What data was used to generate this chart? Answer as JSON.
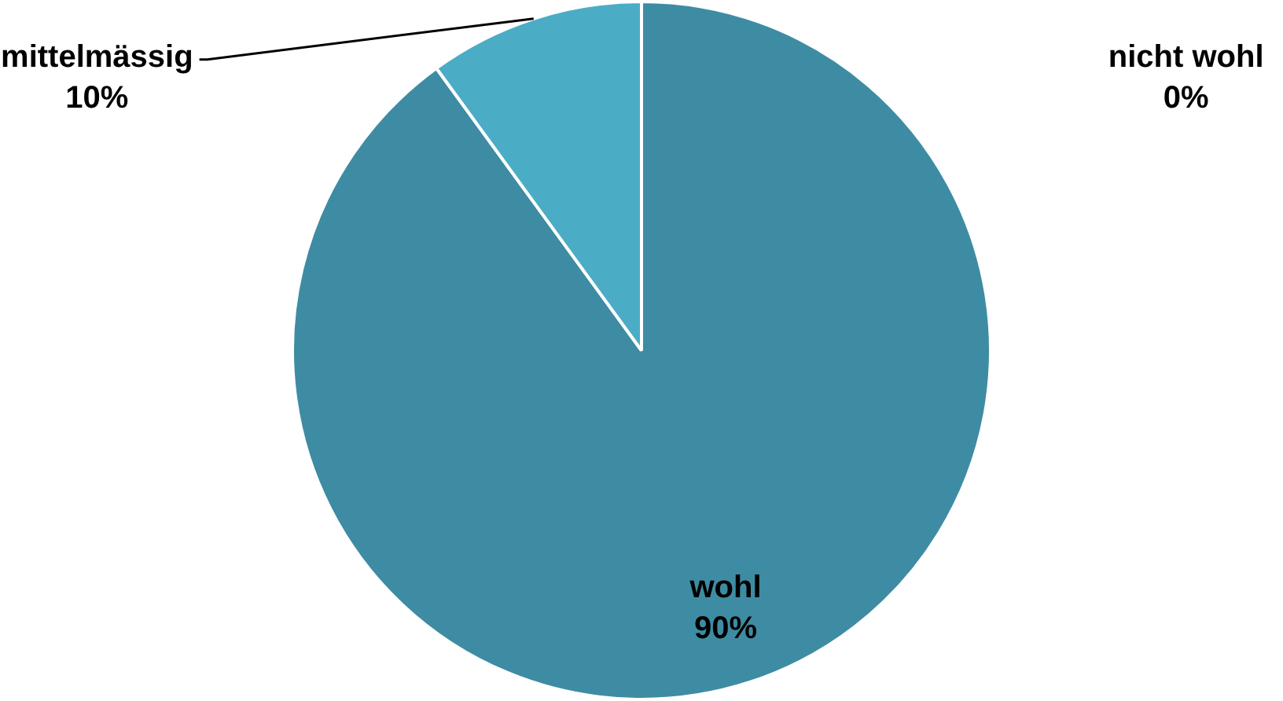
{
  "chart_data": {
    "type": "pie",
    "categories": [
      "wohl",
      "mittelmässig",
      "nicht wohl"
    ],
    "values": [
      90,
      10,
      0
    ],
    "colors": [
      "#3e8ca3",
      "#4bacc6",
      "#8cc7d9"
    ],
    "value_labels": [
      "90%",
      "10%",
      "0%"
    ],
    "legend": false
  }
}
